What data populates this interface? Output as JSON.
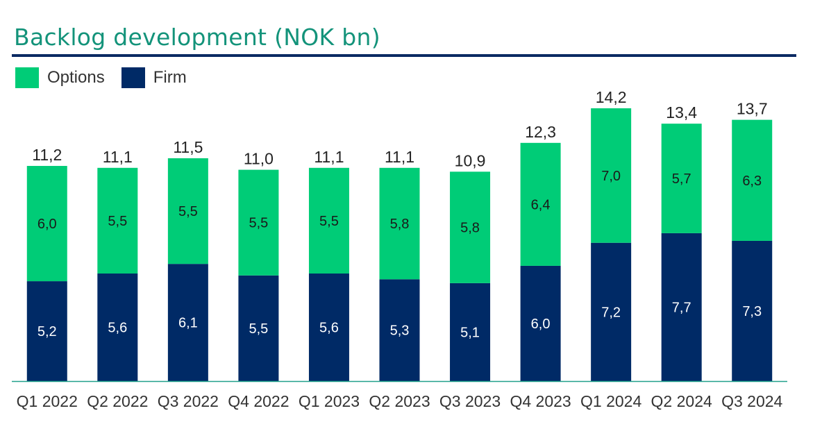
{
  "title": "Backlog development (NOK bn)",
  "colors": {
    "options": "#00cc77",
    "firm": "#002a66",
    "title": "#13937a",
    "rule": "#0b2a63",
    "axis": "#20a08a"
  },
  "legend": [
    {
      "label": "Options",
      "color": "#00cc77"
    },
    {
      "label": "Firm",
      "color": "#002a66"
    }
  ],
  "chart_data": {
    "type": "bar",
    "stacked": true,
    "title": "Backlog development (NOK bn)",
    "categories": [
      "Q1 2022",
      "Q2 2022",
      "Q3 2022",
      "Q4 2022",
      "Q1 2023",
      "Q2 2023",
      "Q3 2023",
      "Q4 2023",
      "Q1 2024",
      "Q2 2024",
      "Q3 2024"
    ],
    "series": [
      {
        "name": "Firm",
        "color": "#002a66",
        "values": [
          5.2,
          5.6,
          6.1,
          5.5,
          5.6,
          5.3,
          5.1,
          6.0,
          7.2,
          7.7,
          7.3
        ],
        "labels": [
          "5,2",
          "5,6",
          "6,1",
          "5,5",
          "5,6",
          "5,3",
          "5,1",
          "6,0",
          "7,2",
          "7,7",
          "7,3"
        ]
      },
      {
        "name": "Options",
        "color": "#00cc77",
        "values": [
          6.0,
          5.5,
          5.5,
          5.5,
          5.5,
          5.8,
          5.8,
          6.4,
          7.0,
          5.7,
          6.3
        ],
        "labels": [
          "6,0",
          "5,5",
          "5,5",
          "5,5",
          "5,5",
          "5,8",
          "5,8",
          "6,4",
          "7,0",
          "5,7",
          "6,3"
        ]
      }
    ],
    "totals": [
      11.2,
      11.1,
      11.5,
      11.0,
      11.1,
      11.1,
      10.9,
      12.3,
      14.2,
      13.4,
      13.7
    ],
    "total_labels": [
      "11,2",
      "11,1",
      "11,5",
      "11,0",
      "11,1",
      "11,1",
      "10,9",
      "12,3",
      "14,2",
      "13,4",
      "13,7"
    ],
    "ylim": [
      0,
      14.2
    ],
    "legend_position": "top-left",
    "grid": false
  }
}
